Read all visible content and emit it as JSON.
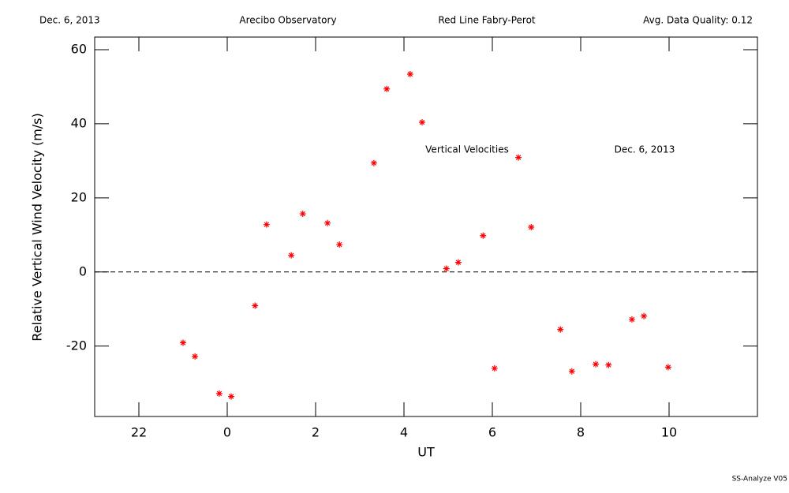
{
  "chart_data": {
    "type": "scatter",
    "header": [
      "Dec. 6, 2013",
      "Arecibo Observatory",
      "Red Line Fabry-Perot",
      "Avg. Data Quality: 0.12"
    ],
    "annotations": [
      "Vertical Velocities",
      "Dec. 6, 2013"
    ],
    "footer": "SS-Analyze V05",
    "xlabel": "UT",
    "ylabel": "Relative Vertical Wind Velocity (m/s)",
    "color": "#ff0000",
    "reference_line": 0,
    "xlim": [
      -3,
      12
    ],
    "xticks": [
      {
        "value": -2,
        "label": "22"
      },
      0,
      2,
      4,
      6,
      8,
      10
    ],
    "ylim": [
      -39,
      63.4
    ],
    "yticks": [
      -20,
      0,
      20,
      40,
      60
    ],
    "x": [
      -1.0,
      -0.73,
      -0.18,
      0.09,
      0.63,
      0.89,
      1.45,
      1.71,
      2.27,
      2.54,
      3.32,
      3.61,
      4.14,
      4.41,
      4.96,
      5.23,
      5.79,
      6.05,
      6.59,
      6.88,
      7.54,
      7.8,
      8.34,
      8.63,
      9.16,
      9.43,
      9.98
    ],
    "values": [
      -19.1,
      -22.8,
      -32.8,
      -33.6,
      -9.1,
      12.8,
      4.5,
      15.7,
      13.2,
      7.4,
      29.4,
      49.4,
      53.4,
      40.4,
      0.9,
      2.6,
      9.8,
      -26.0,
      30.9,
      12.1,
      -15.5,
      -26.8,
      -24.9,
      -25.1,
      -12.8,
      -11.9,
      -25.7
    ]
  }
}
